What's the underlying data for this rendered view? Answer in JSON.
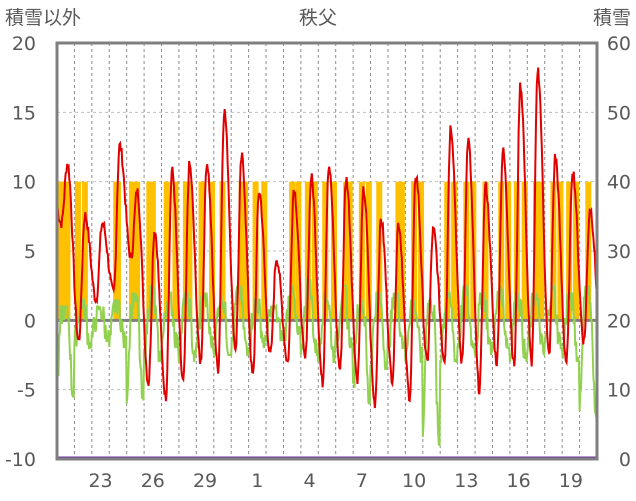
{
  "chart_data": {
    "type": "line",
    "title": "秩父",
    "left_axis_label": "積雪以外",
    "right_axis_label": "積雪",
    "left_axis": {
      "min": -10,
      "max": 20,
      "step": 5,
      "ticks": [
        "20",
        "15",
        "10",
        "5",
        "0",
        "-5",
        "-10"
      ]
    },
    "right_axis": {
      "min": 0,
      "max": 60,
      "step": 10,
      "ticks": [
        "60",
        "50",
        "40",
        "30",
        "20",
        "10",
        "0"
      ]
    },
    "x_axis": {
      "start_day": 21,
      "days": 31,
      "tick_labels": [
        "23",
        "26",
        "29",
        "1",
        "4",
        "7",
        "10",
        "13",
        "16",
        "19"
      ],
      "tick_positions_day_index": [
        2,
        5,
        8,
        11,
        14,
        17,
        20,
        23,
        26,
        29
      ]
    },
    "grid": true,
    "colors": {
      "temperature": "#e00000",
      "wind": "#92d050",
      "sunshine": "#ffc000",
      "snow": "#7030a0",
      "zero_line": "#7f7f7f",
      "frame": "#7f7f7f"
    },
    "series": {
      "temperature_daily": [
        {
          "min": 7.0,
          "max": 11.3
        },
        {
          "min": -1.5,
          "max": 7.6
        },
        {
          "min": 1.5,
          "max": 7.0
        },
        {
          "min": 2.0,
          "max": 12.6
        },
        {
          "min": 4.5,
          "max": 9.3
        },
        {
          "min": -4.5,
          "max": 6.5
        },
        {
          "min": -5.5,
          "max": 10.8
        },
        {
          "min": -4.5,
          "max": 11.2
        },
        {
          "min": -3.0,
          "max": 11.4
        },
        {
          "min": -3.5,
          "max": 15.1
        },
        {
          "min": -2.0,
          "max": 11.8
        },
        {
          "min": -4.0,
          "max": 9.3
        },
        {
          "min": -2.5,
          "max": 4.5
        },
        {
          "min": -3.0,
          "max": 9.5
        },
        {
          "min": -2.8,
          "max": 10.3
        },
        {
          "min": -4.5,
          "max": 11.2
        },
        {
          "min": -3.5,
          "max": 10.2
        },
        {
          "min": -4.2,
          "max": 9.4
        },
        {
          "min": -6.0,
          "max": 7.3
        },
        {
          "min": -4.2,
          "max": 7.0
        },
        {
          "min": -5.5,
          "max": 10.5
        },
        {
          "min": -3.0,
          "max": 6.5
        },
        {
          "min": -2.8,
          "max": 14.0
        },
        {
          "min": -3.0,
          "max": 13.0
        },
        {
          "min": -5.0,
          "max": 9.7
        },
        {
          "min": -3.0,
          "max": 12.2
        },
        {
          "min": -3.2,
          "max": 17.0
        },
        {
          "min": -3.0,
          "max": 18.1
        },
        {
          "min": -2.5,
          "max": 11.8
        },
        {
          "min": -3.0,
          "max": 10.8
        },
        {
          "min": -1.5,
          "max": 8.1
        }
      ],
      "sunshine_daily": [
        [
          0.2,
          0.55,
          0.6,
          0.35
        ],
        [
          0.6,
          0.2
        ],
        [
          0.0
        ],
        [
          0.5,
          0.4
        ],
        [
          0.3,
          0.6
        ],
        [
          0.5,
          0.3
        ],
        [
          0.3,
          0.8
        ],
        [
          0.4,
          0.6
        ],
        [
          0.3,
          0.9
        ],
        [
          0.5
        ],
        [
          0.6,
          0.8
        ],
        [
          0.4,
          0.9
        ],
        [
          0.0
        ],
        [
          0.5,
          0.85
        ],
        [
          0.4,
          0.8
        ],
        [
          0.4,
          0.9
        ],
        [
          0.6,
          0.8
        ],
        [
          0.5,
          0.9
        ],
        [
          0.5
        ],
        [
          0.6,
          0.8
        ],
        [
          0.5,
          0.9
        ],
        [
          0.0
        ],
        [
          0.4,
          0.8
        ],
        [
          0.5,
          0.9
        ],
        [
          0.6
        ],
        [
          0.5,
          0.9
        ],
        [
          0.4,
          0.85
        ],
        [
          0.5,
          0.8
        ],
        [
          0.5,
          0.9
        ],
        [
          0.4,
          0.8
        ],
        [
          0.5
        ]
      ],
      "wind_daily": [
        {
          "min": -5.5,
          "max": 1.0
        },
        {
          "min": -2.0,
          "max": 1.5
        },
        {
          "min": -1.5,
          "max": 1.0
        },
        {
          "min": -2.0,
          "max": 1.5
        },
        {
          "min": -6.0,
          "max": 2.0
        },
        {
          "min": -3.0,
          "max": 2.5
        },
        {
          "min": -2.0,
          "max": 2.0
        },
        {
          "min": -3.0,
          "max": 2.0
        },
        {
          "min": -2.0,
          "max": 2.0
        },
        {
          "min": -2.5,
          "max": 2.0
        },
        {
          "min": -2.5,
          "max": 2.5
        },
        {
          "min": -2.0,
          "max": 1.5
        },
        {
          "min": -1.5,
          "max": 1.0
        },
        {
          "min": -1.5,
          "max": 2.5
        },
        {
          "min": -2.5,
          "max": 3.0
        },
        {
          "min": -3.0,
          "max": 2.0
        },
        {
          "min": -2.0,
          "max": 2.5
        },
        {
          "min": -6.0,
          "max": 1.5
        },
        {
          "min": -3.5,
          "max": 2.0
        },
        {
          "min": -2.0,
          "max": 2.0
        },
        {
          "min": -3.0,
          "max": 1.5
        },
        {
          "min": -9.0,
          "max": 1.5
        },
        {
          "min": -3.0,
          "max": 2.0
        },
        {
          "min": -2.0,
          "max": 2.5
        },
        {
          "min": -2.5,
          "max": 2.0
        },
        {
          "min": -2.0,
          "max": 2.5
        },
        {
          "min": -3.0,
          "max": 2.0
        },
        {
          "min": -2.5,
          "max": 2.0
        },
        {
          "min": -2.0,
          "max": 2.5
        },
        {
          "min": -3.0,
          "max": 2.0
        },
        {
          "min": -7.0,
          "max": 2.5
        }
      ],
      "snow_depth": 0
    }
  }
}
